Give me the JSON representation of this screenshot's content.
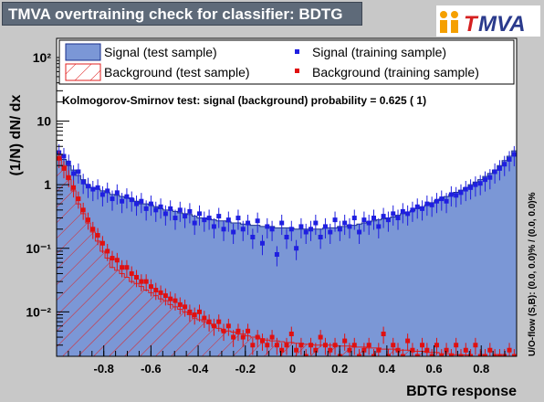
{
  "header": {
    "title": "TMVA overtraining check for classifier: BDTG",
    "logo_text": "MVA",
    "logo_prefix": "T"
  },
  "colors": {
    "frame_bg": "#c8c8c8",
    "title_bg": "#5e6a79",
    "signal_fill": "#7b97d6",
    "signal_line": "#1a2f8c",
    "signal_points": "#1f1fe0",
    "background_hatch": "#e02020",
    "background_points": "#e01010"
  },
  "chart_data": {
    "type": "histogram",
    "xlabel": "BDTG response",
    "ylabel": "(1/N) dN/ dx",
    "right_label": "U/O-flow (S,B): (0.0, 0.0)% / (0.0, 0.0)%",
    "annotation": "Kolmogorov-Smirnov test: signal (background) probability = 0.625 (    1)",
    "xlim": [
      -1.0,
      0.95
    ],
    "ylim": [
      0.002,
      200
    ],
    "log_y": true,
    "x_ticks": [
      -0.8,
      -0.6,
      -0.4,
      -0.2,
      0,
      0.2,
      0.4,
      0.6,
      0.8
    ],
    "x_tick_labels": [
      "-0.8",
      "-0.6",
      "-0.4",
      "-0.2",
      "0",
      "0.2",
      "0.4",
      "0.6",
      "0.8"
    ],
    "y_ticks": [
      0.01,
      0.1,
      1,
      10,
      100
    ],
    "y_tick_labels": [
      "10⁻²",
      "10⁻¹",
      "1",
      "10",
      "10²"
    ],
    "legend": {
      "placement": "top",
      "entries": [
        {
          "label": "Signal (test sample)",
          "style": "fill"
        },
        {
          "label": "Signal (training sample)",
          "style": "marker"
        },
        {
          "label": "Background (test sample)",
          "style": "hatch"
        },
        {
          "label": "Background (training sample)",
          "style": "marker"
        }
      ]
    },
    "bin_edges": {
      "start": -1.0,
      "end": 0.95,
      "nbins": 95
    },
    "series": [
      {
        "name": "Signal (test sample)",
        "values": [
          3.0,
          2.5,
          2.0,
          1.7,
          1.4,
          1.2,
          1.0,
          0.9,
          0.85,
          0.8,
          0.75,
          0.7,
          0.68,
          0.65,
          0.62,
          0.6,
          0.55,
          0.5,
          0.5,
          0.48,
          0.45,
          0.42,
          0.4,
          0.4,
          0.38,
          0.36,
          0.35,
          0.34,
          0.32,
          0.3,
          0.3,
          0.29,
          0.28,
          0.27,
          0.27,
          0.26,
          0.25,
          0.25,
          0.24,
          0.24,
          0.23,
          0.23,
          0.22,
          0.22,
          0.22,
          0.21,
          0.21,
          0.21,
          0.21,
          0.2,
          0.2,
          0.2,
          0.2,
          0.2,
          0.2,
          0.21,
          0.21,
          0.21,
          0.22,
          0.22,
          0.23,
          0.23,
          0.24,
          0.25,
          0.26,
          0.27,
          0.28,
          0.29,
          0.3,
          0.31,
          0.33,
          0.35,
          0.37,
          0.39,
          0.42,
          0.45,
          0.48,
          0.52,
          0.56,
          0.6,
          0.65,
          0.7,
          0.76,
          0.82,
          0.9,
          1.0,
          1.1,
          1.2,
          1.35,
          1.5,
          1.7,
          2.0,
          2.4,
          2.8,
          3.4
        ]
      },
      {
        "name": "Signal (training sample)",
        "values": [
          3.2,
          2.8,
          2.2,
          1.5,
          1.6,
          1.1,
          0.95,
          0.85,
          0.9,
          0.7,
          0.8,
          0.6,
          0.75,
          0.55,
          0.65,
          0.58,
          0.5,
          0.55,
          0.42,
          0.5,
          0.4,
          0.45,
          0.35,
          0.42,
          0.3,
          0.4,
          0.32,
          0.38,
          0.25,
          0.35,
          0.28,
          0.3,
          0.22,
          0.32,
          0.2,
          0.28,
          0.18,
          0.3,
          0.2,
          0.25,
          0.15,
          0.27,
          0.12,
          0.22,
          0.2,
          0.08,
          0.25,
          0.15,
          0.2,
          0.1,
          0.22,
          0.18,
          0.2,
          0.25,
          0.15,
          0.22,
          0.18,
          0.28,
          0.2,
          0.25,
          0.22,
          0.3,
          0.18,
          0.28,
          0.25,
          0.3,
          0.22,
          0.32,
          0.28,
          0.35,
          0.3,
          0.38,
          0.35,
          0.4,
          0.45,
          0.42,
          0.5,
          0.48,
          0.55,
          0.6,
          0.55,
          0.7,
          0.68,
          0.75,
          0.85,
          0.9,
          1.0,
          1.05,
          1.2,
          1.3,
          1.6,
          1.8,
          2.1,
          2.5,
          3.0
        ]
      },
      {
        "name": "Background (test sample)",
        "values": [
          3.0,
          2.0,
          1.2,
          0.8,
          0.5,
          0.35,
          0.25,
          0.18,
          0.13,
          0.09,
          0.07,
          0.05,
          0.045,
          0.04,
          0.035,
          0.03,
          0.028,
          0.025,
          0.022,
          0.02,
          0.018,
          0.016,
          0.015,
          0.013,
          0.012,
          0.011,
          0.01,
          0.009,
          0.008,
          0.0075,
          0.007,
          0.0065,
          0.006,
          0.0055,
          0.005,
          0.005,
          0.0048,
          0.0045,
          0.0045,
          0.0042,
          0.004,
          0.004,
          0.0038,
          0.0036,
          0.0035,
          0.0035,
          0.0034,
          0.0033,
          0.0033,
          0.0032,
          0.0032,
          0.0031,
          0.0031,
          0.003,
          0.003,
          0.003,
          0.003,
          0.003,
          0.0029,
          0.0029,
          0.0029,
          0.0028,
          0.0028,
          0.0028,
          0.0027,
          0.0027,
          0.0027,
          0.0026,
          0.0026,
          0.0026,
          0.0025,
          0.0025,
          0.0025,
          0.0024,
          0.0024,
          0.0024,
          0.0023,
          0.0023,
          0.0023,
          0.0022,
          0.0022,
          0.0022,
          0.0021,
          0.0021,
          0.0021,
          0.002,
          0.002,
          0.002,
          0.002,
          0.002,
          0.002,
          0.002,
          0.002,
          0.002,
          0.002
        ]
      },
      {
        "name": "Background (training sample)",
        "values": [
          2.6,
          1.8,
          1.3,
          0.9,
          0.6,
          0.4,
          0.28,
          0.2,
          0.16,
          0.12,
          0.09,
          0.07,
          0.065,
          0.05,
          0.05,
          0.04,
          0.035,
          0.03,
          0.03,
          0.025,
          0.022,
          0.02,
          0.018,
          0.016,
          0.015,
          0.013,
          0.012,
          0.01,
          0.009,
          0.01,
          0.008,
          0.007,
          0.006,
          0.007,
          0.005,
          0.006,
          0.004,
          0.005,
          0.004,
          0.005,
          0.003,
          0.004,
          0.0035,
          0.003,
          0.004,
          0.003,
          0.0025,
          0.003,
          0.0045,
          0.0025,
          0.003,
          0.002,
          0.003,
          0.0025,
          0.004,
          0.003,
          0.0025,
          0.003,
          0.002,
          0.0035,
          0.0025,
          0.003,
          0.002,
          0.0025,
          0.003,
          0.002,
          0.0025,
          0.0045,
          0.002,
          0.003,
          0.0025,
          0.002,
          0.0035,
          0.0025,
          0.002,
          0.003,
          0.0025,
          0.002,
          0.003,
          0.002,
          0.0025,
          0.002,
          0.003,
          0.002,
          0.0025,
          0.002,
          0.003,
          0.002,
          0.002,
          0.0025,
          0.002,
          0.002,
          0.002,
          0.0025,
          0.002
        ]
      }
    ]
  }
}
